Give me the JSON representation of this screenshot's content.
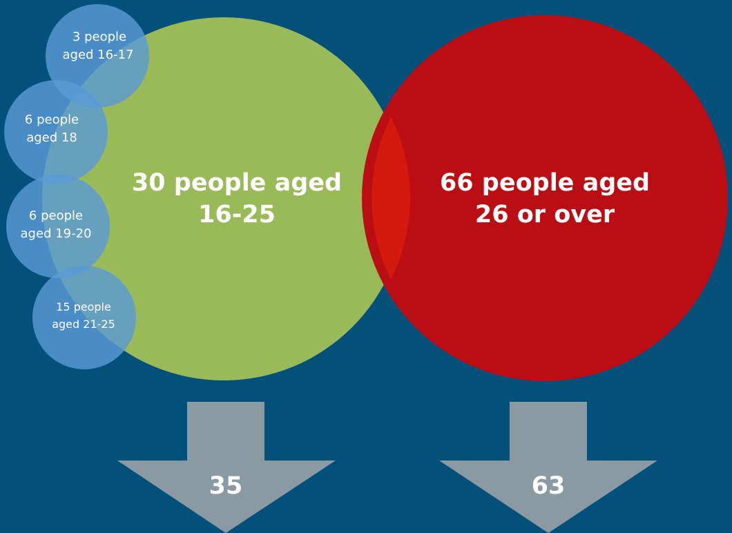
{
  "colors": {
    "background": "#03507b",
    "young_circle": "#9aba5a",
    "older_circle": "#bb0d14",
    "overlap": "#d21a0e",
    "small_circle": "#5a9ad6",
    "arrow": "#8b9aa2",
    "text": "#ffffff"
  },
  "young_group": {
    "line1": "30 people aged",
    "line2": "16-25",
    "count": 30
  },
  "older_group": {
    "line1": "66 people aged",
    "line2": "26 or over",
    "count": 66
  },
  "subgroups": [
    {
      "line1": "3 people",
      "line2": "aged 16-17",
      "count": 3
    },
    {
      "line1": "6 people",
      "line2": "aged 18",
      "count": 6
    },
    {
      "line1": "6 people",
      "line2": "aged 19-20",
      "count": 6
    },
    {
      "line1": "15 people",
      "line2": "aged 21-25",
      "count": 15
    }
  ],
  "arrows": [
    {
      "value": "35"
    },
    {
      "value": "63"
    }
  ]
}
